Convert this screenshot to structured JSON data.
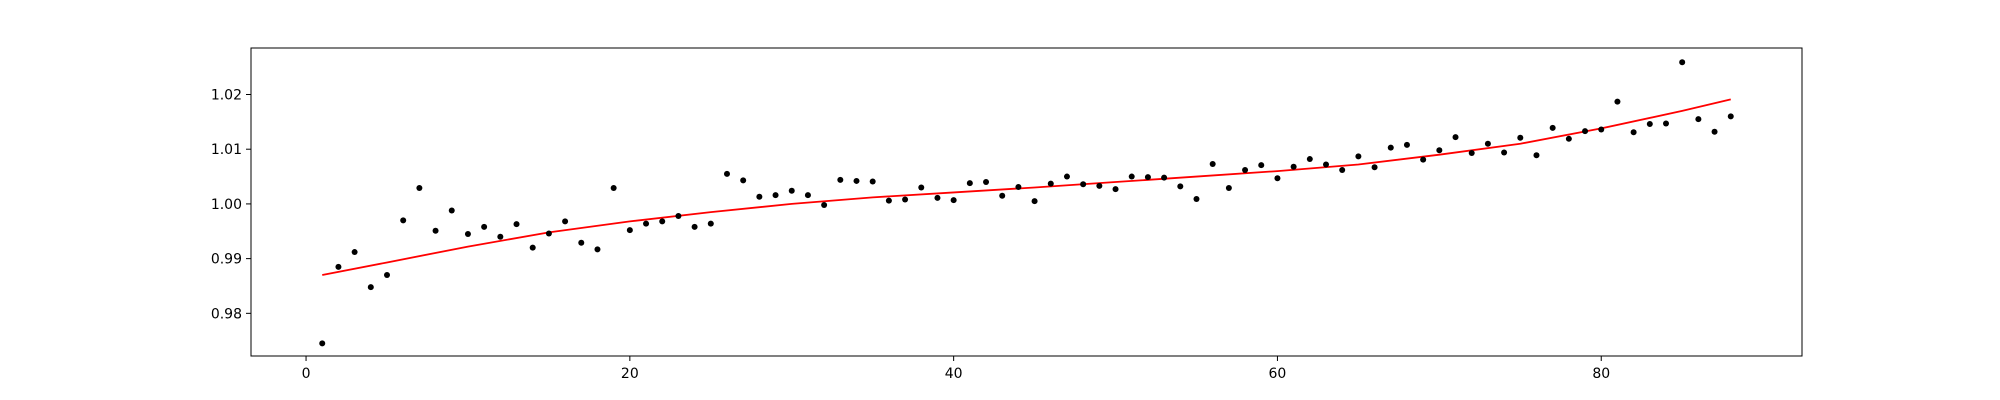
{
  "chart_data": {
    "type": "scatter",
    "title": "",
    "xlabel": "",
    "ylabel": "",
    "xlim": [
      -3.4,
      92.4
    ],
    "ylim": [
      0.9722,
      1.0285
    ],
    "x_ticks": [
      0,
      20,
      40,
      60,
      80
    ],
    "x_tick_labels": [
      "0",
      "20",
      "40",
      "60",
      "80"
    ],
    "y_ticks": [
      0.98,
      0.99,
      1.0,
      1.01,
      1.02
    ],
    "y_tick_labels": [
      "0.98",
      "0.99",
      "1.00",
      "1.01",
      "1.02"
    ],
    "grid": false,
    "legend": "none",
    "series": [
      {
        "kind": "points",
        "color": "#000000",
        "x": [
          1,
          2,
          3,
          4,
          5,
          6,
          7,
          8,
          9,
          10,
          11,
          12,
          13,
          14,
          15,
          16,
          17,
          18,
          19,
          20,
          21,
          22,
          23,
          24,
          25,
          26,
          27,
          28,
          29,
          30,
          31,
          32,
          33,
          34,
          35,
          36,
          37,
          38,
          39,
          40,
          41,
          42,
          43,
          44,
          45,
          46,
          47,
          48,
          49,
          50,
          51,
          52,
          53,
          54,
          55,
          56,
          57,
          58,
          59,
          60,
          61,
          62,
          63,
          64,
          65,
          66,
          67,
          68,
          69,
          70,
          71,
          72,
          73,
          74,
          75,
          76,
          77,
          78,
          79,
          80,
          81,
          82,
          83,
          84,
          85,
          86,
          87,
          88
        ],
        "y": [
          0.9745,
          0.9885,
          0.9912,
          0.9848,
          0.987,
          0.997,
          1.0029,
          0.9951,
          0.9988,
          0.9945,
          0.9958,
          0.994,
          0.9963,
          0.992,
          0.9946,
          0.9968,
          0.9929,
          0.9917,
          1.0029,
          0.9952,
          0.9964,
          0.9968,
          0.9978,
          0.9958,
          0.9964,
          1.0055,
          1.0043,
          1.0013,
          1.0016,
          1.0024,
          1.0016,
          0.9998,
          1.0044,
          1.0042,
          1.0041,
          1.0006,
          1.0008,
          1.003,
          1.0011,
          1.0007,
          1.0038,
          1.004,
          1.0015,
          1.0031,
          1.0005,
          1.0037,
          1.005,
          1.0036,
          1.0033,
          1.0027,
          1.005,
          1.0049,
          1.0048,
          1.0032,
          1.0009,
          1.0073,
          1.0029,
          1.0062,
          1.0071,
          1.0047,
          1.0068,
          1.0082,
          1.0072,
          1.0062,
          1.0087,
          1.0067,
          1.0103,
          1.0108,
          1.0081,
          1.0098,
          1.0122,
          1.0093,
          1.011,
          1.0094,
          1.0121,
          1.0089,
          1.0139,
          1.0119,
          1.0133,
          1.0136,
          1.0187,
          1.0131,
          1.0146,
          1.0147,
          1.0259,
          1.0155,
          1.0132,
          1.016
        ]
      },
      {
        "kind": "line",
        "color": "#ff0000",
        "x": [
          1,
          5,
          10,
          15,
          20,
          25,
          30,
          35,
          40,
          45,
          50,
          55,
          60,
          65,
          70,
          75,
          80,
          85,
          88
        ],
        "y": [
          0.987,
          0.9893,
          0.9922,
          0.9948,
          0.9968,
          0.9985,
          1.0,
          1.0012,
          1.0021,
          1.003,
          1.004,
          1.005,
          1.006,
          1.0072,
          1.009,
          1.011,
          1.0138,
          1.017,
          1.0191
        ]
      }
    ]
  }
}
